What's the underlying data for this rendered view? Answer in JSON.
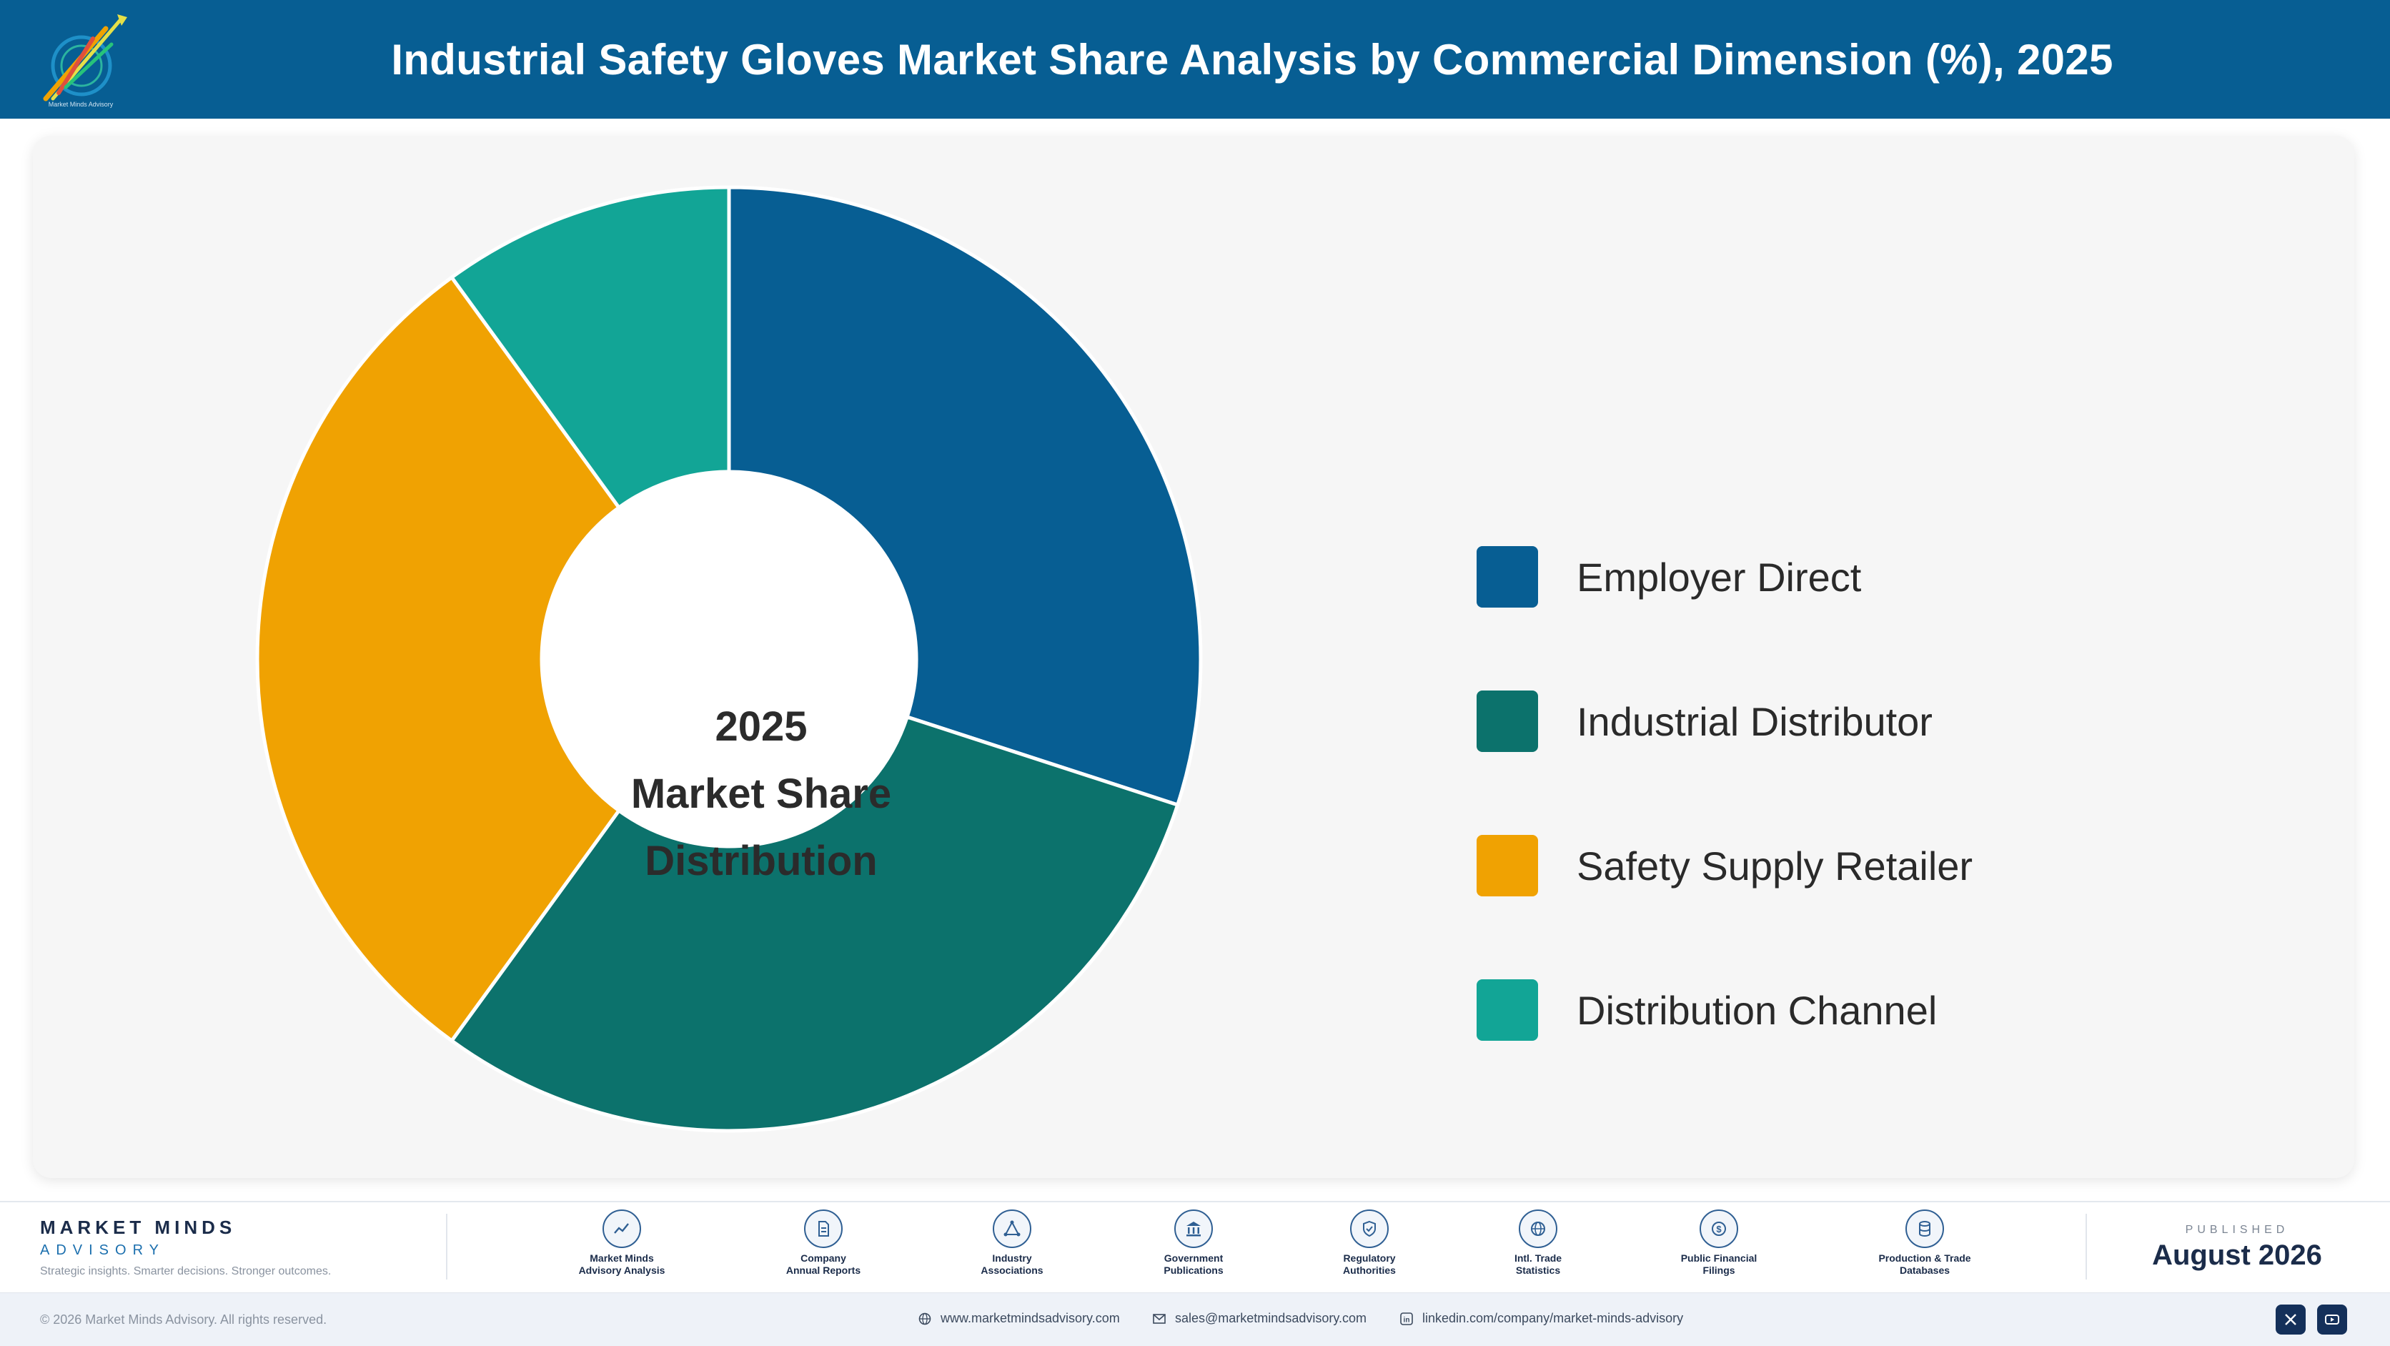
{
  "header": {
    "title": "Industrial Safety Gloves Market Share Analysis by Commercial Dimension (%), 2025",
    "logo_caption": "Market Minds Advisory"
  },
  "chart": {
    "center_line1": "2025",
    "center_line2": "Market Share",
    "center_line3": "Distribution"
  },
  "chart_data": {
    "type": "pie",
    "style": "donut",
    "title": "Industrial Safety Gloves Market Share Analysis by Commercial Dimension (%), 2025",
    "start_angle": "12 o'clock, clockwise",
    "legend_position": "right",
    "series": [
      {
        "name": "Employer Direct",
        "value": 30.0,
        "color": "#075e93"
      },
      {
        "name": "Industrial Distributor",
        "value": 30.0,
        "color": "#0c726c"
      },
      {
        "name": "Safety Supply Retailer",
        "value": 30.0,
        "color": "#f0a202"
      },
      {
        "name": "Distribution Channel",
        "value": 10.0,
        "color": "#12a596"
      }
    ]
  },
  "footer": {
    "brand_name": "MARKET MINDS",
    "brand_sub": "ADVISORY",
    "tagline": "Strategic insights. Smarter decisions. Stronger outcomes.",
    "sources": [
      {
        "line1": "Market Minds",
        "line2": "Advisory Analysis",
        "icon": "trend-chart-icon"
      },
      {
        "line1": "Company",
        "line2": "Annual Reports",
        "icon": "document-icon"
      },
      {
        "line1": "Industry",
        "line2": "Associations",
        "icon": "network-icon"
      },
      {
        "line1": "Government",
        "line2": "Publications",
        "icon": "government-building-icon"
      },
      {
        "line1": "Regulatory",
        "line2": "Authorities",
        "icon": "shield-check-icon"
      },
      {
        "line1": "Intl. Trade",
        "line2": "Statistics",
        "icon": "globe-icon"
      },
      {
        "line1": "Public Financial",
        "line2": "Filings",
        "icon": "dollar-coin-icon"
      },
      {
        "line1": "Production & Trade",
        "line2": "Databases",
        "icon": "database-icon"
      }
    ],
    "published_label": "PUBLISHED",
    "published_date": "August 2026"
  },
  "bottombar": {
    "copyright": "© 2026 Market Minds Advisory. All rights reserved.",
    "website": "www.marketmindsadvisory.com",
    "email": "sales@marketmindsadvisory.com",
    "linkedin": "linkedin.com/company/market-minds-advisory"
  },
  "colors": {
    "header_bg": "#075e93",
    "card_bg": "#f6f6f6",
    "brand_navy": "#1b2c4a"
  }
}
